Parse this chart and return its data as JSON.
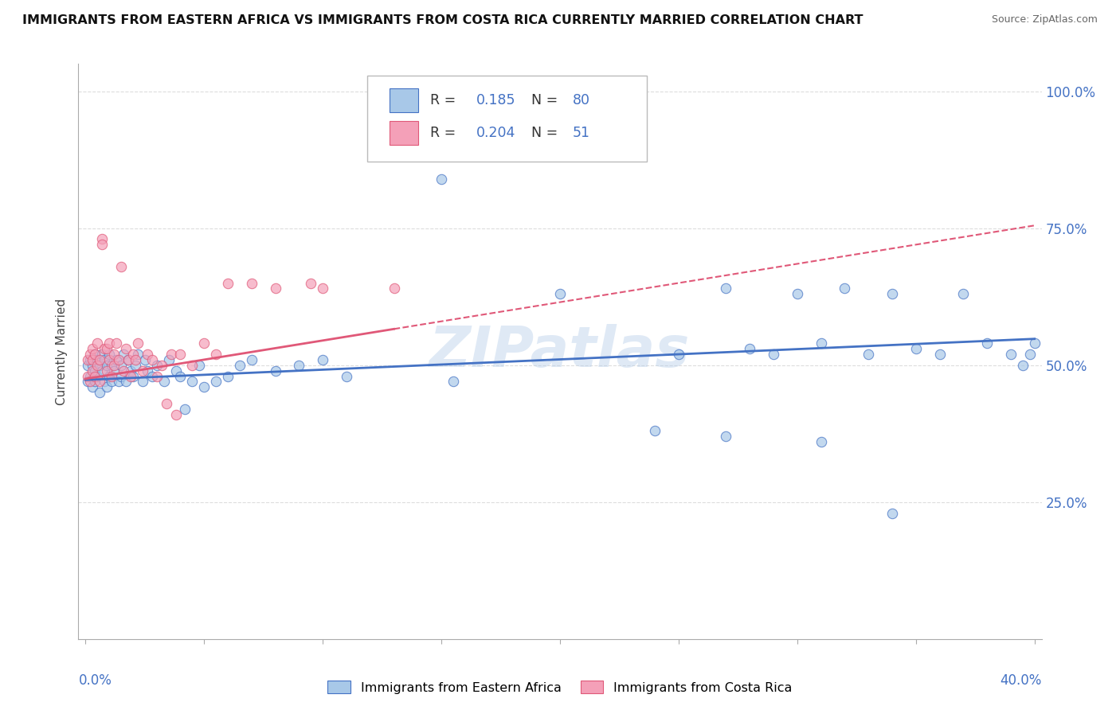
{
  "title": "IMMIGRANTS FROM EASTERN AFRICA VS IMMIGRANTS FROM COSTA RICA CURRENTLY MARRIED CORRELATION CHART",
  "source": "Source: ZipAtlas.com",
  "ylabel": "Currently Married",
  "color_blue": "#A8C8E8",
  "color_pink": "#F4A0B8",
  "line_blue": "#4472C4",
  "line_pink": "#E05878",
  "watermark": "ZIPatlas",
  "background": "#FFFFFF",
  "grid_color": "#DDDDDD",
  "blue_x": [
    0.001,
    0.001,
    0.002,
    0.002,
    0.003,
    0.003,
    0.004,
    0.004,
    0.004,
    0.005,
    0.005,
    0.006,
    0.006,
    0.007,
    0.007,
    0.008,
    0.008,
    0.009,
    0.009,
    0.01,
    0.01,
    0.011,
    0.011,
    0.012,
    0.013,
    0.014,
    0.015,
    0.015,
    0.016,
    0.017,
    0.018,
    0.019,
    0.02,
    0.021,
    0.022,
    0.024,
    0.025,
    0.026,
    0.028,
    0.03,
    0.033,
    0.035,
    0.038,
    0.04,
    0.042,
    0.045,
    0.048,
    0.05,
    0.055,
    0.06,
    0.065,
    0.07,
    0.08,
    0.09,
    0.1,
    0.11,
    0.15,
    0.155,
    0.2,
    0.25,
    0.27,
    0.28,
    0.29,
    0.3,
    0.31,
    0.32,
    0.33,
    0.34,
    0.35,
    0.36,
    0.37,
    0.38,
    0.39,
    0.395,
    0.398,
    0.4,
    0.31,
    0.27,
    0.24,
    0.34
  ],
  "blue_y": [
    0.47,
    0.5,
    0.48,
    0.51,
    0.46,
    0.5,
    0.49,
    0.52,
    0.47,
    0.51,
    0.48,
    0.45,
    0.5,
    0.49,
    0.52,
    0.47,
    0.51,
    0.46,
    0.5,
    0.48,
    0.52,
    0.47,
    0.5,
    0.49,
    0.51,
    0.47,
    0.5,
    0.48,
    0.52,
    0.47,
    0.51,
    0.49,
    0.48,
    0.5,
    0.52,
    0.47,
    0.51,
    0.49,
    0.48,
    0.5,
    0.47,
    0.51,
    0.49,
    0.48,
    0.42,
    0.47,
    0.5,
    0.46,
    0.47,
    0.48,
    0.5,
    0.51,
    0.49,
    0.5,
    0.51,
    0.48,
    0.84,
    0.47,
    0.63,
    0.52,
    0.64,
    0.53,
    0.52,
    0.63,
    0.54,
    0.64,
    0.52,
    0.63,
    0.53,
    0.52,
    0.63,
    0.54,
    0.52,
    0.5,
    0.52,
    0.54,
    0.36,
    0.37,
    0.38,
    0.23
  ],
  "pink_x": [
    0.001,
    0.001,
    0.002,
    0.002,
    0.003,
    0.003,
    0.003,
    0.004,
    0.004,
    0.005,
    0.005,
    0.006,
    0.006,
    0.007,
    0.007,
    0.008,
    0.009,
    0.009,
    0.01,
    0.01,
    0.011,
    0.012,
    0.012,
    0.013,
    0.014,
    0.015,
    0.016,
    0.017,
    0.018,
    0.019,
    0.02,
    0.021,
    0.022,
    0.024,
    0.026,
    0.028,
    0.03,
    0.032,
    0.034,
    0.036,
    0.038,
    0.04,
    0.045,
    0.05,
    0.055,
    0.06,
    0.07,
    0.08,
    0.095,
    0.1,
    0.13
  ],
  "pink_y": [
    0.48,
    0.51,
    0.47,
    0.52,
    0.49,
    0.51,
    0.53,
    0.48,
    0.52,
    0.5,
    0.54,
    0.47,
    0.51,
    0.73,
    0.72,
    0.53,
    0.49,
    0.53,
    0.51,
    0.54,
    0.48,
    0.52,
    0.5,
    0.54,
    0.51,
    0.68,
    0.49,
    0.53,
    0.51,
    0.48,
    0.52,
    0.51,
    0.54,
    0.49,
    0.52,
    0.51,
    0.48,
    0.5,
    0.43,
    0.52,
    0.41,
    0.52,
    0.5,
    0.54,
    0.52,
    0.65,
    0.65,
    0.64,
    0.65,
    0.64,
    0.64
  ],
  "xlim": [
    0.0,
    0.4
  ],
  "ylim": [
    0.0,
    1.05
  ],
  "yticks": [
    0.25,
    0.5,
    0.75,
    1.0
  ],
  "ytick_labels": [
    "25.0%",
    "50.0%",
    "75.0%",
    "100.0%"
  ],
  "blue_trend_x0": 0.0,
  "blue_trend_x1": 0.4,
  "blue_trend_y0": 0.473,
  "blue_trend_y1": 0.548,
  "pink_trend_x0": 0.0,
  "pink_trend_x1": 0.4,
  "pink_trend_y0": 0.475,
  "pink_trend_y1": 0.755
}
